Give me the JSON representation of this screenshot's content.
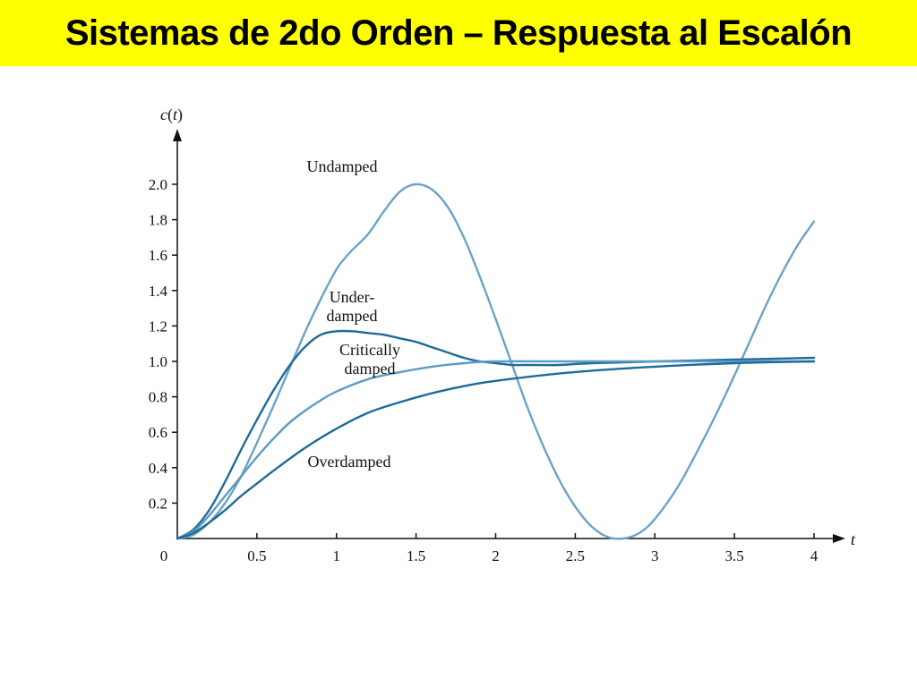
{
  "slide": {
    "title": "Sistemas de 2do Orden – Respuesta al Escalón"
  },
  "colors": {
    "title_background": "#ffff00",
    "undamped": "#6aa3c8",
    "underdamped": "#1f6a9a",
    "critically_damped": "#5b9cc4",
    "overdamped": "#1f6a9a",
    "axis": "#111111"
  },
  "chart_data": {
    "type": "line",
    "xlabel": "t",
    "ylabel": "c(t)",
    "xlim": [
      0,
      4
    ],
    "ylim": [
      0,
      2.0
    ],
    "x_ticks": [
      0,
      0.5,
      1,
      1.5,
      2,
      2.5,
      3,
      3.5,
      4
    ],
    "x_tick_labels": [
      "0",
      "0.5",
      "1",
      "1.5",
      "2",
      "2.5",
      "3",
      "3.5",
      "4"
    ],
    "y_ticks": [
      0.2,
      0.4,
      0.6,
      0.8,
      1.0,
      1.2,
      1.4,
      1.6,
      1.8,
      2.0
    ],
    "y_tick_labels": [
      "0.2",
      "0.4",
      "0.6",
      "0.8",
      "1.0",
      "1.2",
      "1.4",
      "1.6",
      "1.8",
      "2.0"
    ],
    "grid": false,
    "series": [
      {
        "name": "Undamped",
        "label_lines": [
          "Undamped"
        ],
        "color": "#6aa3c8",
        "x": [
          0,
          0.1,
          0.2,
          0.3,
          0.4,
          0.5,
          0.6,
          0.7,
          0.8,
          0.9,
          1.0,
          1.05,
          1.1,
          1.2,
          1.3,
          1.4,
          1.5,
          1.6,
          1.7,
          1.8,
          1.9,
          2.0,
          2.1,
          2.2,
          2.3,
          2.4,
          2.5,
          2.6,
          2.7,
          2.8,
          2.9,
          3.0,
          3.15,
          3.3,
          3.4,
          3.5,
          3.6,
          3.7,
          3.8,
          3.9,
          4.0
        ],
        "y": [
          0,
          0.02,
          0.09,
          0.2,
          0.35,
          0.54,
          0.74,
          0.95,
          1.16,
          1.35,
          1.52,
          1.58,
          1.63,
          1.72,
          1.85,
          1.96,
          2.0,
          1.97,
          1.87,
          1.7,
          1.48,
          1.24,
          0.99,
          0.74,
          0.52,
          0.33,
          0.18,
          0.07,
          0.01,
          0.0,
          0.03,
          0.11,
          0.3,
          0.55,
          0.73,
          0.92,
          1.12,
          1.32,
          1.5,
          1.66,
          1.79
        ]
      },
      {
        "name": "Under-damped",
        "label_lines": [
          "Under-",
          "damped"
        ],
        "color": "#1f6a9a",
        "x": [
          0,
          0.1,
          0.2,
          0.3,
          0.4,
          0.5,
          0.6,
          0.7,
          0.8,
          0.9,
          1.0,
          1.1,
          1.2,
          1.3,
          1.4,
          1.5,
          1.6,
          1.7,
          1.8,
          1.9,
          2.0,
          2.1,
          2.2,
          2.4,
          2.6,
          3.0,
          3.5,
          4.0
        ],
        "y": [
          0,
          0.05,
          0.16,
          0.32,
          0.5,
          0.67,
          0.83,
          0.97,
          1.08,
          1.15,
          1.17,
          1.17,
          1.16,
          1.15,
          1.13,
          1.11,
          1.08,
          1.05,
          1.02,
          1.0,
          0.99,
          0.98,
          0.98,
          0.98,
          0.99,
          1.0,
          1.01,
          1.02
        ]
      },
      {
        "name": "Critically damped",
        "label_lines": [
          "Critically",
          "damped"
        ],
        "color": "#5b9cc4",
        "x": [
          0,
          0.1,
          0.2,
          0.3,
          0.4,
          0.5,
          0.6,
          0.7,
          0.8,
          0.9,
          1.0,
          1.2,
          1.4,
          1.6,
          1.8,
          2.0,
          2.5,
          3.0,
          3.5,
          4.0
        ],
        "y": [
          0,
          0.04,
          0.13,
          0.24,
          0.35,
          0.46,
          0.56,
          0.65,
          0.72,
          0.78,
          0.83,
          0.9,
          0.94,
          0.97,
          0.99,
          1.0,
          1.0,
          1.0,
          1.0,
          1.0
        ]
      },
      {
        "name": "Overdamped",
        "label_lines": [
          "Overdamped"
        ],
        "color": "#1f6a9a",
        "x": [
          0,
          0.1,
          0.2,
          0.3,
          0.4,
          0.5,
          0.6,
          0.8,
          1.0,
          1.2,
          1.4,
          1.6,
          1.8,
          2.0,
          2.5,
          3.0,
          3.5,
          4.0
        ],
        "y": [
          0,
          0.03,
          0.09,
          0.16,
          0.24,
          0.31,
          0.38,
          0.51,
          0.62,
          0.71,
          0.77,
          0.82,
          0.86,
          0.89,
          0.94,
          0.97,
          0.99,
          1.0
        ]
      }
    ]
  }
}
